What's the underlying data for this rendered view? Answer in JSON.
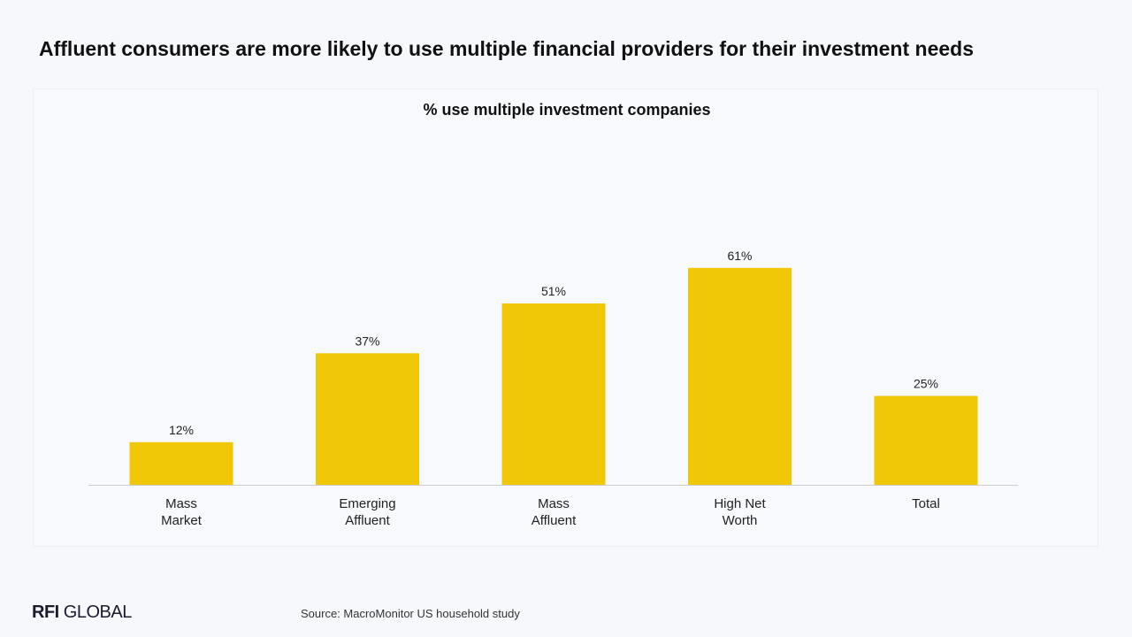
{
  "headline": "Affluent consumers are more likely to use multiple financial providers for their investment needs",
  "chart_data": {
    "type": "bar",
    "title": "% use multiple investment companies",
    "categories": [
      [
        "Mass",
        "Market"
      ],
      [
        "Emerging",
        "Affluent"
      ],
      [
        "Mass",
        "Affluent"
      ],
      [
        "High Net",
        "Worth"
      ],
      [
        "Total"
      ]
    ],
    "values": [
      12,
      37,
      51,
      61,
      25
    ],
    "data_labels": [
      "12%",
      "37%",
      "51%",
      "61%",
      "25%"
    ],
    "ylim": [
      0,
      100
    ],
    "grid": false,
    "legend": "none",
    "bar_color": "#f0c808",
    "axis_color": "#cccccc"
  },
  "footer": {
    "logo_strong": "RFI",
    "logo_rest": "GLOBAL",
    "source": "Source: MacroMonitor US household study"
  }
}
